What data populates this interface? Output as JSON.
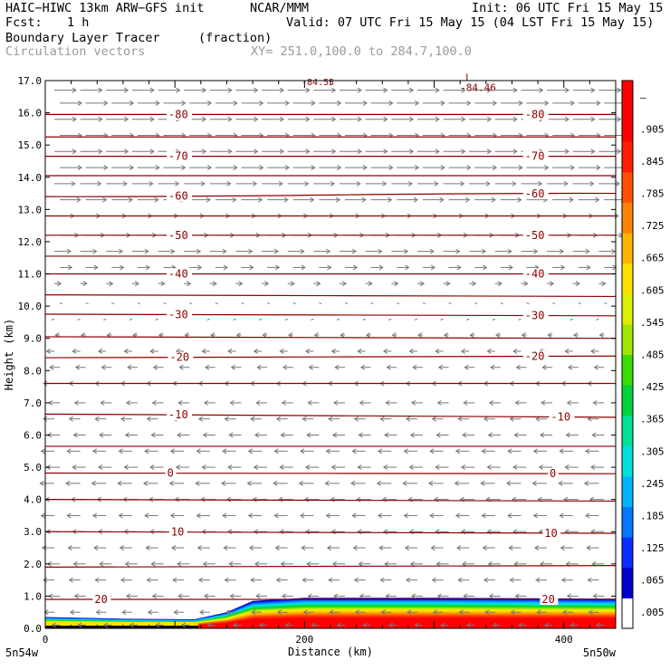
{
  "header": {
    "model": "HAIC−HIWC 13km ARW−GFS init",
    "org": "NCAR/MMM",
    "init": "Init: 06 UTC Fri 15 May 15",
    "fcst_label": "Fcst:",
    "fcst_value": "1 h",
    "valid": "Valid: 07 UTC Fri 15 May 15 (04 LST Fri 15 May 15)",
    "field1_name": "Boundary Layer Tracer",
    "field1_units": "(fraction)",
    "field2_name": "Circulation vectors",
    "xy_range": "XY= 251.0,100.0 to 284.7,100.0"
  },
  "chart_data": {
    "type": "heatmap",
    "xlabel": "Distance (km)",
    "ylabel": "Height (km)",
    "xlim": [
      0,
      440
    ],
    "ylim": [
      0,
      17
    ],
    "x_ticks": [
      "0",
      "200",
      "400"
    ],
    "y_ticks": [
      "0.0",
      "1.0",
      "2.0",
      "3.0",
      "4.0",
      "5.0",
      "6.0",
      "7.0",
      "8.0",
      "9.0",
      "10.0",
      "11.0",
      "12.0",
      "13.0",
      "14.0",
      "15.0",
      "16.0",
      "17.0"
    ],
    "x_endpoints": [
      "5n54w",
      "5n50w"
    ],
    "colorbar": {
      "labels": [
        ".005",
        ".065",
        ".125",
        ".185",
        ".245",
        ".305",
        ".365",
        ".425",
        ".485",
        ".545",
        ".605",
        ".665",
        ".725",
        ".785",
        ".845",
        ".905",
        "–"
      ],
      "colors": [
        "#ffffff",
        "#0000c8",
        "#0a2dff",
        "#0078ff",
        "#00b4ff",
        "#00e1dc",
        "#00e196",
        "#00d23c",
        "#3cdc00",
        "#a0e600",
        "#dcf000",
        "#ffe100",
        "#ffb400",
        "#ff8200",
        "#ff5000",
        "#ff1e00",
        "#ff0000",
        "#ff0000"
      ]
    },
    "tracer_fraction": [
      {
        "x": 0,
        "top": 0.35,
        "band": "low"
      },
      {
        "x": 60,
        "top": 0.3,
        "band": "low"
      },
      {
        "x": 115,
        "top": 0.28,
        "band": "low"
      },
      {
        "x": 140,
        "top": 0.5,
        "band": "ramp"
      },
      {
        "x": 160,
        "top": 0.85,
        "band": "high"
      },
      {
        "x": 200,
        "top": 0.95,
        "band": "high"
      },
      {
        "x": 300,
        "top": 0.95,
        "band": "high"
      },
      {
        "x": 440,
        "top": 0.92,
        "band": "high"
      }
    ],
    "temperature_contours": {
      "units": "°C",
      "lines": [
        {
          "label": "20",
          "y_left": 0.9,
          "y_right": 0.9,
          "label_x": [
            38,
            383
          ]
        },
        {
          "label": "",
          "y_left": 1.9,
          "y_right": 1.95
        },
        {
          "label": "10",
          "y_left": 3.0,
          "y_right": 2.95,
          "label_x": [
            97,
            385
          ]
        },
        {
          "label": "",
          "y_left": 4.0,
          "y_right": 3.95
        },
        {
          "label": "0",
          "y_left": 4.82,
          "y_right": 4.8,
          "label_x": [
            94,
            389
          ]
        },
        {
          "label": "",
          "y_left": 5.65,
          "y_right": 5.65
        },
        {
          "label": "-10",
          "y_left": 6.65,
          "y_right": 6.55,
          "label_x": [
            95,
            390
          ]
        },
        {
          "label": "",
          "y_left": 7.6,
          "y_right": 7.6
        },
        {
          "label": "-20",
          "y_left": 8.4,
          "y_right": 8.45,
          "label_x": [
            96,
            370
          ]
        },
        {
          "label": "",
          "y_left": 9.05,
          "y_right": 9.0
        },
        {
          "label": "-30",
          "y_left": 9.75,
          "y_right": 9.7,
          "label_x": [
            95,
            370
          ]
        },
        {
          "label": "",
          "y_left": 10.35,
          "y_right": 10.3
        },
        {
          "label": "-40",
          "y_left": 11.0,
          "y_right": 11.0,
          "label_x": [
            95,
            370
          ]
        },
        {
          "label": "",
          "y_left": 11.55,
          "y_right": 11.55
        },
        {
          "label": "-50",
          "y_left": 12.2,
          "y_right": 12.2,
          "label_x": [
            95,
            370
          ]
        },
        {
          "label": "",
          "y_left": 12.8,
          "y_right": 12.8
        },
        {
          "label": "-60",
          "y_left": 13.4,
          "y_right": 13.5,
          "label_x": [
            95,
            370
          ]
        },
        {
          "label": "",
          "y_left": 14.05,
          "y_right": 14.05
        },
        {
          "label": "-70",
          "y_left": 14.65,
          "y_right": 14.65,
          "label_x": [
            95,
            370
          ]
        },
        {
          "label": "",
          "y_left": 15.25,
          "y_right": 15.25
        },
        {
          "label": "-80",
          "y_left": 15.95,
          "y_right": 15.95,
          "label_x": [
            95,
            370
          ]
        }
      ],
      "low": {
        "marker": "L",
        "value": "-84.46",
        "x": 320,
        "y": 16.85
      },
      "top_label": "-84.55"
    },
    "circulation_vectors": {
      "rows": [
        {
          "height": 16.7,
          "u": 1.0
        },
        {
          "height": 16.3,
          "u": 1.0
        },
        {
          "height": 15.8,
          "u": 1.0
        },
        {
          "height": 15.3,
          "u": 1.0
        },
        {
          "height": 14.8,
          "u": 1.0
        },
        {
          "height": 14.3,
          "u": 1.0
        },
        {
          "height": 13.8,
          "u": 0.95
        },
        {
          "height": 13.3,
          "u": 0.95
        },
        {
          "height": 12.8,
          "u": 0.9
        },
        {
          "height": 12.2,
          "u": 0.85
        },
        {
          "height": 11.7,
          "u": 0.75
        },
        {
          "height": 11.2,
          "u": 0.55
        },
        {
          "height": 10.7,
          "u": 0.3
        },
        {
          "height": 10.1,
          "u": 0.1
        },
        {
          "height": 9.6,
          "u": -0.1
        },
        {
          "height": 9.1,
          "u": -0.2
        },
        {
          "height": 8.6,
          "u": -0.35
        },
        {
          "height": 8.1,
          "u": -0.45
        },
        {
          "height": 7.6,
          "u": -0.5
        },
        {
          "height": 7.0,
          "u": -0.5
        },
        {
          "height": 6.5,
          "u": -0.5
        },
        {
          "height": 6.0,
          "u": -0.55
        },
        {
          "height": 5.5,
          "u": -0.6
        },
        {
          "height": 5.0,
          "u": -0.6
        },
        {
          "height": 4.5,
          "u": -0.65
        },
        {
          "height": 4.0,
          "u": -0.65
        },
        {
          "height": 3.5,
          "u": -0.6
        },
        {
          "height": 3.0,
          "u": -0.6
        },
        {
          "height": 2.5,
          "u": -0.55
        },
        {
          "height": 2.0,
          "u": -0.55
        },
        {
          "height": 1.5,
          "u": -0.5
        },
        {
          "height": 1.0,
          "u": -0.5
        },
        {
          "height": 0.5,
          "u": -0.45
        },
        {
          "height": 0.1,
          "u": -0.35
        }
      ],
      "columns_km": [
        0,
        20,
        40,
        60,
        80,
        100,
        120,
        140,
        160,
        180,
        200,
        220,
        240,
        260,
        280,
        300,
        320,
        340,
        360,
        380,
        400,
        420
      ]
    }
  }
}
